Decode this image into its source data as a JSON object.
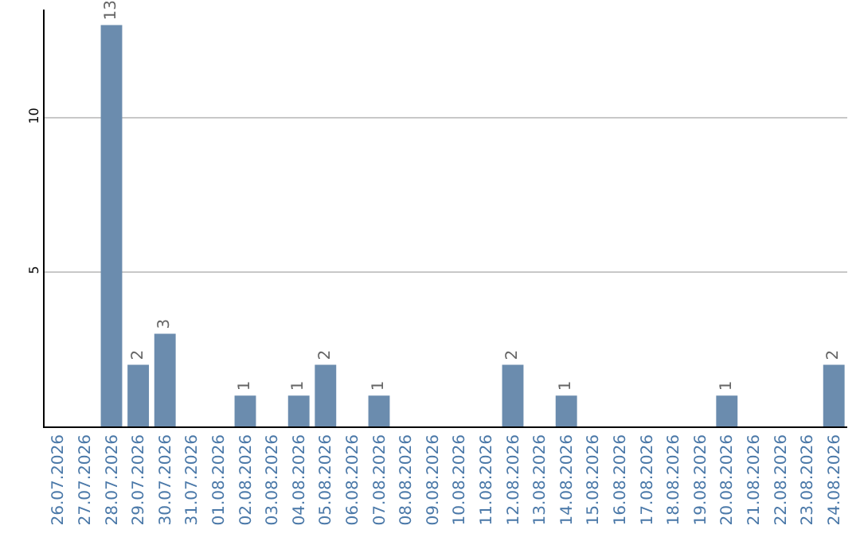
{
  "chart_data": {
    "type": "bar",
    "categories": [
      "26.07.2026",
      "27.07.2026",
      "28.07.2026",
      "29.07.2026",
      "30.07.2026",
      "31.07.2026",
      "01.08.2026",
      "02.08.2026",
      "03.08.2026",
      "04.08.2026",
      "05.08.2026",
      "06.08.2026",
      "07.08.2026",
      "08.08.2026",
      "09.08.2026",
      "10.08.2026",
      "11.08.2026",
      "12.08.2026",
      "13.08.2026",
      "14.08.2026",
      "15.08.2026",
      "16.08.2026",
      "17.08.2026",
      "18.08.2026",
      "19.08.2026",
      "20.08.2026",
      "21.08.2026",
      "22.08.2026",
      "23.08.2026",
      "24.08.2026"
    ],
    "values": [
      null,
      null,
      13,
      2,
      3,
      null,
      null,
      1,
      null,
      1,
      2,
      null,
      1,
      null,
      null,
      null,
      null,
      2,
      null,
      1,
      null,
      null,
      null,
      null,
      null,
      1,
      null,
      null,
      null,
      2
    ],
    "color": "#6b8cae",
    "ylim": [
      0,
      13.5
    ],
    "yticks": [
      5,
      10
    ],
    "grid": "y",
    "data_labels": true
  }
}
